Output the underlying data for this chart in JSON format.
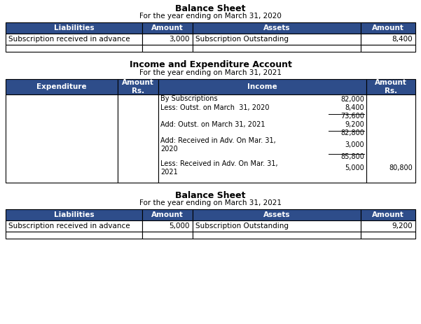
{
  "header_color": "#2E4D8A",
  "header_text_color": "#FFFFFF",
  "cell_bg": "#FFFFFF",
  "cell_text_color": "#000000",
  "border_color": "#000000",
  "bs2020_title": "Balance Sheet",
  "bs2020_subtitle": "For the year ending on March 31, 2020",
  "bs2020_headers": [
    "Liabilities",
    "Amount",
    "Assets",
    "Amount"
  ],
  "bs2020_row1": [
    "Subscription received in advance",
    "3,000",
    "Subscription Outstanding",
    "8,400"
  ],
  "ie_title": "Income and Expenditure Account",
  "ie_subtitle": "For the year ending on March 31, 2021",
  "ie_headers": [
    "Expenditure",
    "Amount\nRs.",
    "Income",
    "Amount\nRs."
  ],
  "ie_income_lines": [
    {
      "text": "By Subscriptions",
      "amt": "82,000",
      "final": "",
      "underline_after": false,
      "two_line": false
    },
    {
      "text": "Less: Outst. on March  31, 2020",
      "amt": "8,400",
      "final": "",
      "underline_after": true,
      "two_line": false
    },
    {
      "text": "Add: Outst. on March 31, 2021",
      "amt": "9,200",
      "subtotal": "73,600",
      "underline_after": true,
      "two_line": false
    },
    {
      "text": "Add: Received in Adv. On Mar. 31,\n2020",
      "amt": "3,000",
      "subtotal": "82,800",
      "underline_after": true,
      "two_line": true
    },
    {
      "text": "Less: Received in Adv. On Mar. 31,\n2021",
      "amt": "5,000",
      "subtotal": "85,800",
      "final": "80,800",
      "underline_after": false,
      "two_line": true
    }
  ],
  "bs2021_title": "Balance Sheet",
  "bs2021_subtitle": "For the year ending on March 31, 2021",
  "bs2021_headers": [
    "Liabilities",
    "Amount",
    "Assets",
    "Amount"
  ],
  "bs2021_row1": [
    "Subscription received in advance",
    "5,000",
    "Subscription Outstanding",
    "9,200"
  ]
}
